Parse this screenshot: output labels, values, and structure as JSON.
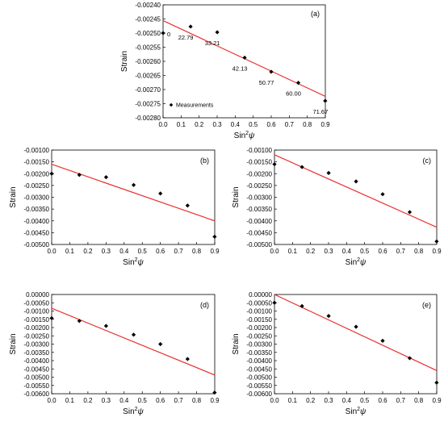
{
  "chart_data": [
    {
      "type": "scatter",
      "panel_label": "(a)",
      "xlabel": "Sin²ψ",
      "ylabel": "Strain",
      "xlim": [
        0.0,
        0.9
      ],
      "ylim": [
        -0.0028,
        -0.0024
      ],
      "xticks": [
        "0.0",
        "0.1",
        "0.2",
        "0.3",
        "0.4",
        "0.5",
        "0.6",
        "0.7",
        "0.8",
        "0.9"
      ],
      "xtick_values": [
        0.0,
        0.1,
        0.2,
        0.3,
        0.4,
        0.5,
        0.6,
        0.7,
        0.8,
        0.9
      ],
      "yticks": [
        "-0.00240",
        "-0.00245",
        "-0.00250",
        "-0.00255",
        "-0.00260",
        "-0.00265",
        "-0.00270",
        "-0.00275",
        "-0.00280"
      ],
      "ytick_values": [
        -0.0024,
        -0.00245,
        -0.0025,
        -0.00255,
        -0.0026,
        -0.00265,
        -0.0027,
        -0.00275,
        -0.0028
      ],
      "legend": {
        "label": "Measurements",
        "position": "bottom-left"
      },
      "points": [
        {
          "x": 0.0,
          "y": -0.0025,
          "label": "0"
        },
        {
          "x": 0.1527,
          "y": -0.002477,
          "label": "22.79"
        },
        {
          "x": 0.3004,
          "y": -0.002497,
          "label": "33.21"
        },
        {
          "x": 0.4525,
          "y": -0.002587,
          "label": "42.13"
        },
        {
          "x": 0.6,
          "y": -0.002637,
          "label": "50.77"
        },
        {
          "x": 0.75,
          "y": -0.002676,
          "label": "60.00"
        },
        {
          "x": 0.8994,
          "y": -0.00274,
          "label": "71.67"
        }
      ],
      "fit_line": {
        "x": [
          0.0,
          0.9
        ],
        "y": [
          -0.002456,
          -0.002724
        ],
        "color": "#e8312f"
      }
    },
    {
      "type": "scatter",
      "panel_label": "(b)",
      "xlabel": "Sin²ψ",
      "ylabel": "Strain",
      "xlim": [
        0.0,
        0.9
      ],
      "ylim": [
        -0.005,
        -0.001
      ],
      "xticks": [
        "0.0",
        "0.1",
        "0.2",
        "0.3",
        "0.4",
        "0.5",
        "0.6",
        "0.7",
        "0.8",
        "0.9"
      ],
      "xtick_values": [
        0.0,
        0.1,
        0.2,
        0.3,
        0.4,
        0.5,
        0.6,
        0.7,
        0.8,
        0.9
      ],
      "yticks": [
        "-0.00100",
        "-0.00150",
        "-0.00200",
        "-0.00250",
        "-0.00300",
        "-0.00350",
        "-0.00400",
        "-0.00450",
        "-0.00500"
      ],
      "ytick_values": [
        -0.001,
        -0.0015,
        -0.002,
        -0.0025,
        -0.003,
        -0.0035,
        -0.004,
        -0.0045,
        -0.005
      ],
      "points": [
        {
          "x": 0.0,
          "y": -0.002
        },
        {
          "x": 0.1527,
          "y": -0.00205
        },
        {
          "x": 0.3004,
          "y": -0.00215
        },
        {
          "x": 0.4525,
          "y": -0.00248
        },
        {
          "x": 0.6,
          "y": -0.00284
        },
        {
          "x": 0.75,
          "y": -0.00335
        },
        {
          "x": 0.8994,
          "y": -0.00467
        }
      ],
      "fit_line": {
        "x": [
          0.0,
          0.9
        ],
        "y": [
          -0.0016,
          -0.004
        ],
        "color": "#e8312f"
      }
    },
    {
      "type": "scatter",
      "panel_label": "(c)",
      "xlabel": "Sin²ψ",
      "ylabel": "Strain",
      "xlim": [
        0.0,
        0.9
      ],
      "ylim": [
        -0.005,
        -0.001
      ],
      "xticks": [
        "0.0",
        "0.1",
        "0.2",
        "0.3",
        "0.4",
        "0.5",
        "0.6",
        "0.7",
        "0.8",
        "0.9"
      ],
      "xtick_values": [
        0.0,
        0.1,
        0.2,
        0.3,
        0.4,
        0.5,
        0.6,
        0.7,
        0.8,
        0.9
      ],
      "yticks": [
        "-0.00100",
        "-0.00150",
        "-0.00200",
        "-0.00250",
        "-0.00300",
        "-0.00350",
        "-0.00400",
        "-0.00450",
        "-0.00500"
      ],
      "ytick_values": [
        -0.001,
        -0.0015,
        -0.002,
        -0.0025,
        -0.003,
        -0.0035,
        -0.004,
        -0.0045,
        -0.005
      ],
      "points": [
        {
          "x": 0.0,
          "y": -0.0016
        },
        {
          "x": 0.1527,
          "y": -0.00172
        },
        {
          "x": 0.3004,
          "y": -0.00197
        },
        {
          "x": 0.4525,
          "y": -0.00233
        },
        {
          "x": 0.6,
          "y": -0.00287
        },
        {
          "x": 0.75,
          "y": -0.00363
        },
        {
          "x": 0.8994,
          "y": -0.00487
        }
      ],
      "fit_line": {
        "x": [
          0.0,
          0.9
        ],
        "y": [
          -0.0012,
          -0.00427
        ],
        "color": "#e8312f"
      }
    },
    {
      "type": "scatter",
      "panel_label": "(d)",
      "xlabel": "Sin²ψ",
      "ylabel": "Strain",
      "xlim": [
        0.0,
        0.9
      ],
      "ylim": [
        -0.006,
        0.0
      ],
      "xticks": [
        "0.0",
        "0.1",
        "0.2",
        "0.3",
        "0.4",
        "0.5",
        "0.6",
        "0.7",
        "0.8",
        "0.9"
      ],
      "xtick_values": [
        0.0,
        0.1,
        0.2,
        0.3,
        0.4,
        0.5,
        0.6,
        0.7,
        0.8,
        0.9
      ],
      "yticks": [
        "0.00000",
        "-0.00050",
        "-0.00100",
        "-0.00150",
        "-0.00200",
        "-0.00250",
        "-0.00300",
        "-0.00350",
        "-0.00400",
        "-0.00450",
        "-0.00500",
        "-0.00550",
        "-0.00600"
      ],
      "ytick_values": [
        0.0,
        -0.0005,
        -0.001,
        -0.0015,
        -0.002,
        -0.0025,
        -0.003,
        -0.0035,
        -0.004,
        -0.0045,
        -0.005,
        -0.0055,
        -0.006
      ],
      "points": [
        {
          "x": 0.0,
          "y": -0.00143
        },
        {
          "x": 0.1527,
          "y": -0.0016
        },
        {
          "x": 0.3004,
          "y": -0.0019
        },
        {
          "x": 0.4525,
          "y": -0.00243
        },
        {
          "x": 0.6,
          "y": -0.003
        },
        {
          "x": 0.75,
          "y": -0.0039
        },
        {
          "x": 0.8994,
          "y": -0.00593
        }
      ],
      "fit_line": {
        "x": [
          0.0,
          0.9
        ],
        "y": [
          -0.00083,
          -0.00487
        ],
        "color": "#e8312f"
      }
    },
    {
      "type": "scatter",
      "panel_label": "(e)",
      "xlabel": "Sin²ψ",
      "ylabel": "Strain",
      "xlim": [
        0.0,
        0.9
      ],
      "ylim": [
        -0.006,
        0.0
      ],
      "xticks": [
        "0.0",
        "0.1",
        "0.2",
        "0.3",
        "0.4",
        "0.5",
        "0.6",
        "0.7",
        "0.8",
        "0.9"
      ],
      "xtick_values": [
        0.0,
        0.1,
        0.2,
        0.3,
        0.4,
        0.5,
        0.6,
        0.7,
        0.8,
        0.9
      ],
      "yticks": [
        "0.00000",
        "-0.00050",
        "-0.00100",
        "-0.00150",
        "-0.00200",
        "-0.00250",
        "-0.00300",
        "-0.00350",
        "-0.00400",
        "-0.00450",
        "-0.00500",
        "-0.00550",
        "-0.00600"
      ],
      "ytick_values": [
        0.0,
        -0.0005,
        -0.001,
        -0.0015,
        -0.002,
        -0.0025,
        -0.003,
        -0.0035,
        -0.004,
        -0.0045,
        -0.005,
        -0.0055,
        -0.006
      ],
      "points": [
        {
          "x": 0.0,
          "y": -0.0005
        },
        {
          "x": 0.1527,
          "y": -0.0007
        },
        {
          "x": 0.3004,
          "y": -0.0013
        },
        {
          "x": 0.4525,
          "y": -0.00195
        },
        {
          "x": 0.6,
          "y": -0.0028
        },
        {
          "x": 0.75,
          "y": -0.00385
        },
        {
          "x": 0.8994,
          "y": -0.00533
        }
      ],
      "fit_line": {
        "x": [
          0.0,
          0.9
        ],
        "y": [
          0.0,
          -0.0046
        ],
        "color": "#e8312f"
      }
    }
  ]
}
